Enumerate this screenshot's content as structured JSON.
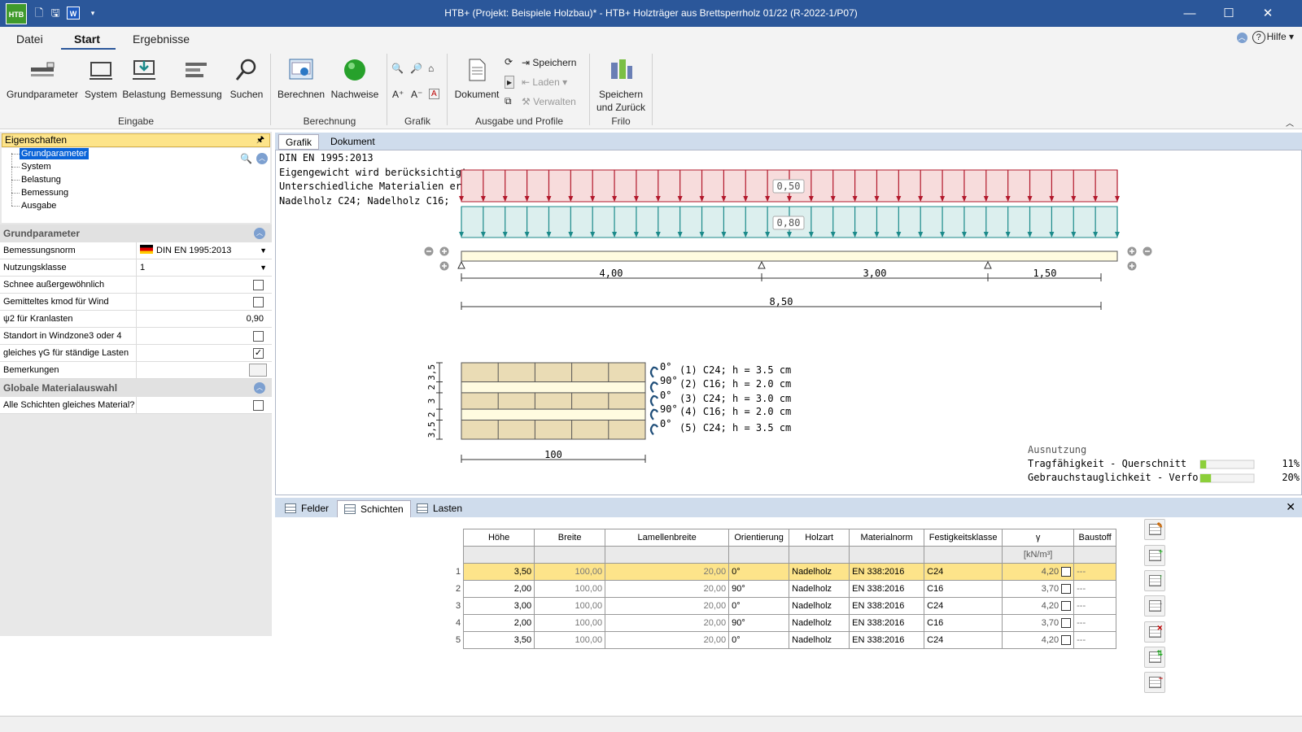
{
  "titlebar": {
    "logo": "HTB",
    "title": "HTB+ (Projekt: Beispiele Holzbau)* - HTB+ Holzträger aus Brettsperrholz 01/22 (R-2022-1/P07)",
    "minimize": "—",
    "maximize": "☐",
    "close": "✕"
  },
  "menu_tabs": [
    "Datei",
    "Start",
    "Ergebnisse"
  ],
  "help": "Hilfe",
  "ribbon": {
    "buttons": {
      "grundparameter": "Grundparameter",
      "system": "System",
      "belastung": "Belastung",
      "bemessung": "Bemessung",
      "suchen": "Suchen",
      "berechnen": "Berechnen",
      "nachweise": "Nachweise",
      "dokument": "Dokument",
      "speichern": "Speichern",
      "laden": "Laden",
      "verwalten": "Verwalten",
      "speichern_zurueck_1": "Speichern",
      "speichern_zurueck_2": "und Zurück"
    },
    "groups": {
      "eingabe": "Eingabe",
      "berechnung": "Berechnung",
      "grafik": "Grafik",
      "ausgabe": "Ausgabe und Profile",
      "frilo": "Frilo"
    }
  },
  "left": {
    "header": "Eigenschaften",
    "tree": [
      "Grundparameter",
      "System",
      "Belastung",
      "Bemessung",
      "Ausgabe"
    ],
    "section1": "Grundparameter",
    "props": [
      {
        "label": "Bemessungsnorm",
        "value": "DIN EN 1995:2013"
      },
      {
        "label": "Nutzungsklasse",
        "value": "1"
      },
      {
        "label": "Schnee außergewöhnlich",
        "value": ""
      },
      {
        "label": "Gemitteltes kmod für Wind",
        "value": ""
      },
      {
        "label": "ψ2 für Kranlasten",
        "value": "0,90"
      },
      {
        "label": "Standort in Windzone3 oder 4",
        "value": ""
      },
      {
        "label": "gleiches γG für ständige Lasten",
        "value": "✓"
      },
      {
        "label": "Bemerkungen",
        "value": ""
      }
    ],
    "section2": "Globale Materialauswahl",
    "props2": [
      {
        "label": "Alle Schichten gleiches Material?",
        "value": ""
      }
    ]
  },
  "doc_tabs": [
    "Grafik",
    "Dokument"
  ],
  "graphic": {
    "info": [
      "DIN EN 1995:2013",
      "Eigengewicht wird berücksichtigt",
      "Unterschiedliche Materialien erlaubt",
      "Nadelholz C24; Nadelholz C16;"
    ],
    "load1": "0,50",
    "load2": "0,80",
    "spans": [
      "4,00",
      "3,00",
      "1,50"
    ],
    "total": "8,50",
    "section_width": "100",
    "layer_dims": [
      "3,5",
      "2",
      "3",
      "2",
      "3,5"
    ],
    "angles": [
      "0°",
      "90°",
      "0°",
      "90°",
      "0°"
    ],
    "layer_desc": [
      "(1) C24; h = 3.5 cm",
      "(2) C16; h = 2.0 cm",
      "(3) C24; h = 3.0 cm",
      "(4) C16; h = 2.0 cm",
      "(5) C24; h = 3.5 cm"
    ],
    "util_title": "Ausnutzung",
    "util": [
      {
        "label": "Tragfähigkeit - Querschnitt",
        "value": "11%",
        "fraction": 0.11
      },
      {
        "label": "Gebrauchstauglichkeit - Verformung",
        "value": "20%",
        "fraction": 0.2
      }
    ]
  },
  "bottom_tabs": [
    "Felder",
    "Schichten",
    "Lasten"
  ],
  "table": {
    "headers": [
      "Höhe",
      "Breite",
      "Lamellenbreite",
      "Orientierung",
      "Holzart",
      "Materialnorm",
      "Festigkeitsklasse",
      "γ",
      "Baustoff"
    ],
    "unit_gamma": "[kN/m³]",
    "rows": [
      {
        "n": "1",
        "h": "3,50",
        "b": "100,00",
        "lb": "20,00",
        "o": "0°",
        "holz": "Nadelholz",
        "norm": "EN 338:2016",
        "fk": "C24",
        "g": "4,20",
        "bs": "---"
      },
      {
        "n": "2",
        "h": "2,00",
        "b": "100,00",
        "lb": "20,00",
        "o": "90°",
        "holz": "Nadelholz",
        "norm": "EN 338:2016",
        "fk": "C16",
        "g": "3,70",
        "bs": "---"
      },
      {
        "n": "3",
        "h": "3,00",
        "b": "100,00",
        "lb": "20,00",
        "o": "0°",
        "holz": "Nadelholz",
        "norm": "EN 338:2016",
        "fk": "C24",
        "g": "4,20",
        "bs": "---"
      },
      {
        "n": "4",
        "h": "2,00",
        "b": "100,00",
        "lb": "20,00",
        "o": "90°",
        "holz": "Nadelholz",
        "norm": "EN 338:2016",
        "fk": "C16",
        "g": "3,70",
        "bs": "---"
      },
      {
        "n": "5",
        "h": "3,50",
        "b": "100,00",
        "lb": "20,00",
        "o": "0°",
        "holz": "Nadelholz",
        "norm": "EN 338:2016",
        "fk": "C24",
        "g": "4,20",
        "bs": "---"
      }
    ]
  },
  "colors": {
    "titlebar": "#2b579a",
    "load_dead": "#b2182b",
    "load_live": "#1b8a8a",
    "selected_row": "#fde48a",
    "util_fill": "#8ccf3a"
  }
}
